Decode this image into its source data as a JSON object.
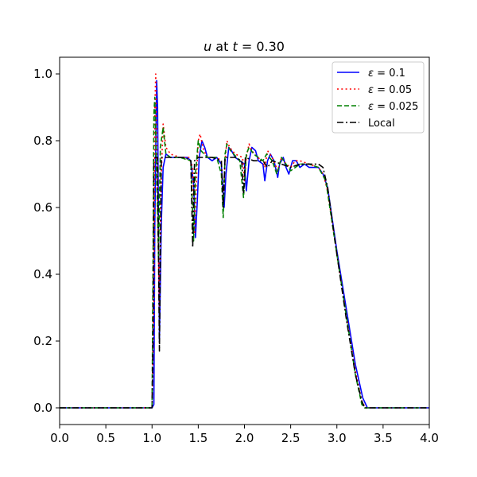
{
  "chart_data": {
    "type": "line",
    "title": "u at t = 0.30",
    "title_parts": {
      "var": "u",
      "mid": " at ",
      "tvar": "t",
      "tail": " = 0.30"
    },
    "xlabel": "",
    "ylabel": "",
    "xlim": [
      0.0,
      4.0
    ],
    "ylim": [
      -0.05,
      1.05
    ],
    "xticks": [
      "0.0",
      "0.5",
      "1.0",
      "1.5",
      "2.0",
      "2.5",
      "3.0",
      "3.5",
      "4.0"
    ],
    "yticks": [
      "0.0",
      "0.2",
      "0.4",
      "0.6",
      "0.8",
      "1.0"
    ],
    "grid": false,
    "legend_position": "top-right",
    "series": [
      {
        "name": "ε = 0.1",
        "legend_parts": {
          "sym": "ε",
          "tail": " = 0.1"
        },
        "color": "#0000ff",
        "dash": "solid",
        "points": [
          [
            0,
            0
          ],
          [
            1.0,
            0
          ],
          [
            1.02,
            0.01
          ],
          [
            1.03,
            0.55
          ],
          [
            1.05,
            0.98
          ],
          [
            1.06,
            0.9
          ],
          [
            1.08,
            0.2
          ],
          [
            1.1,
            0.55
          ],
          [
            1.12,
            0.72
          ],
          [
            1.15,
            0.76
          ],
          [
            1.2,
            0.75
          ],
          [
            1.3,
            0.75
          ],
          [
            1.38,
            0.75
          ],
          [
            1.42,
            0.74
          ],
          [
            1.45,
            0.67
          ],
          [
            1.47,
            0.51
          ],
          [
            1.49,
            0.62
          ],
          [
            1.51,
            0.75
          ],
          [
            1.54,
            0.8
          ],
          [
            1.57,
            0.78
          ],
          [
            1.6,
            0.75
          ],
          [
            1.65,
            0.74
          ],
          [
            1.7,
            0.75
          ],
          [
            1.75,
            0.73
          ],
          [
            1.78,
            0.6
          ],
          [
            1.8,
            0.7
          ],
          [
            1.83,
            0.78
          ],
          [
            1.86,
            0.77
          ],
          [
            1.9,
            0.75
          ],
          [
            1.95,
            0.74
          ],
          [
            2.0,
            0.73
          ],
          [
            2.02,
            0.65
          ],
          [
            2.05,
            0.74
          ],
          [
            2.08,
            0.78
          ],
          [
            2.12,
            0.77
          ],
          [
            2.15,
            0.74
          ],
          [
            2.2,
            0.73
          ],
          [
            2.22,
            0.68
          ],
          [
            2.25,
            0.74
          ],
          [
            2.28,
            0.76
          ],
          [
            2.32,
            0.74
          ],
          [
            2.36,
            0.69
          ],
          [
            2.38,
            0.73
          ],
          [
            2.42,
            0.75
          ],
          [
            2.45,
            0.72
          ],
          [
            2.48,
            0.7
          ],
          [
            2.52,
            0.74
          ],
          [
            2.56,
            0.74
          ],
          [
            2.6,
            0.72
          ],
          [
            2.65,
            0.73
          ],
          [
            2.7,
            0.72
          ],
          [
            2.8,
            0.72
          ],
          [
            2.85,
            0.7
          ],
          [
            2.9,
            0.66
          ],
          [
            3.0,
            0.47
          ],
          [
            3.1,
            0.3
          ],
          [
            3.2,
            0.13
          ],
          [
            3.28,
            0.03
          ],
          [
            3.33,
            0.0
          ],
          [
            4.0,
            0
          ]
        ]
      },
      {
        "name": "ε = 0.05",
        "legend_parts": {
          "sym": "ε",
          "tail": " = 0.05"
        },
        "color": "#ff0000",
        "dash": "dotted",
        "points": [
          [
            0,
            0
          ],
          [
            1.0,
            0
          ],
          [
            1.02,
            0.3
          ],
          [
            1.03,
            0.9
          ],
          [
            1.04,
            1.0
          ],
          [
            1.06,
            0.6
          ],
          [
            1.08,
            0.3
          ],
          [
            1.1,
            0.7
          ],
          [
            1.12,
            0.85
          ],
          [
            1.15,
            0.78
          ],
          [
            1.2,
            0.76
          ],
          [
            1.3,
            0.75
          ],
          [
            1.4,
            0.75
          ],
          [
            1.44,
            0.72
          ],
          [
            1.46,
            0.52
          ],
          [
            1.48,
            0.68
          ],
          [
            1.5,
            0.8
          ],
          [
            1.52,
            0.82
          ],
          [
            1.56,
            0.77
          ],
          [
            1.6,
            0.75
          ],
          [
            1.7,
            0.75
          ],
          [
            1.75,
            0.74
          ],
          [
            1.77,
            0.6
          ],
          [
            1.79,
            0.74
          ],
          [
            1.81,
            0.8
          ],
          [
            1.84,
            0.78
          ],
          [
            1.9,
            0.76
          ],
          [
            1.98,
            0.75
          ],
          [
            2.0,
            0.68
          ],
          [
            2.02,
            0.75
          ],
          [
            2.05,
            0.79
          ],
          [
            2.08,
            0.77
          ],
          [
            2.14,
            0.75
          ],
          [
            2.2,
            0.74
          ],
          [
            2.22,
            0.72
          ],
          [
            2.25,
            0.77
          ],
          [
            2.3,
            0.75
          ],
          [
            2.36,
            0.71
          ],
          [
            2.4,
            0.75
          ],
          [
            2.45,
            0.73
          ],
          [
            2.5,
            0.72
          ],
          [
            2.55,
            0.74
          ],
          [
            2.6,
            0.74
          ],
          [
            2.7,
            0.73
          ],
          [
            2.8,
            0.72
          ],
          [
            2.85,
            0.7
          ],
          [
            2.9,
            0.65
          ],
          [
            3.0,
            0.46
          ],
          [
            3.1,
            0.28
          ],
          [
            3.2,
            0.11
          ],
          [
            3.27,
            0.02
          ],
          [
            3.31,
            0.0
          ],
          [
            4.0,
            0
          ]
        ]
      },
      {
        "name": "ε = 0.025",
        "legend_parts": {
          "sym": "ε",
          "tail": " = 0.025"
        },
        "color": "#008000",
        "dash": "dashed",
        "points": [
          [
            0,
            0
          ],
          [
            1.0,
            0
          ],
          [
            1.01,
            0.4
          ],
          [
            1.02,
            0.88
          ],
          [
            1.03,
            0.93
          ],
          [
            1.05,
            0.7
          ],
          [
            1.07,
            0.45
          ],
          [
            1.09,
            0.78
          ],
          [
            1.12,
            0.84
          ],
          [
            1.15,
            0.76
          ],
          [
            1.2,
            0.75
          ],
          [
            1.3,
            0.75
          ],
          [
            1.42,
            0.74
          ],
          [
            1.45,
            0.5
          ],
          [
            1.47,
            0.7
          ],
          [
            1.5,
            0.8
          ],
          [
            1.53,
            0.77
          ],
          [
            1.6,
            0.75
          ],
          [
            1.7,
            0.75
          ],
          [
            1.75,
            0.7
          ],
          [
            1.77,
            0.57
          ],
          [
            1.79,
            0.76
          ],
          [
            1.81,
            0.79
          ],
          [
            1.85,
            0.77
          ],
          [
            1.95,
            0.74
          ],
          [
            1.99,
            0.63
          ],
          [
            2.02,
            0.76
          ],
          [
            2.05,
            0.78
          ],
          [
            2.1,
            0.76
          ],
          [
            2.2,
            0.74
          ],
          [
            2.24,
            0.76
          ],
          [
            2.3,
            0.74
          ],
          [
            2.35,
            0.7
          ],
          [
            2.4,
            0.75
          ],
          [
            2.45,
            0.73
          ],
          [
            2.5,
            0.71
          ],
          [
            2.6,
            0.73
          ],
          [
            2.7,
            0.73
          ],
          [
            2.8,
            0.72
          ],
          [
            2.88,
            0.68
          ],
          [
            3.0,
            0.46
          ],
          [
            3.1,
            0.28
          ],
          [
            3.2,
            0.1
          ],
          [
            3.27,
            0.01
          ],
          [
            3.3,
            0.0
          ],
          [
            4.0,
            0
          ]
        ]
      },
      {
        "name": "Local",
        "color": "#000000",
        "dash": "dashdot",
        "points": [
          [
            0,
            0
          ],
          [
            1.0,
            0
          ],
          [
            1.01,
            0.2
          ],
          [
            1.02,
            0.75
          ],
          [
            1.04,
            0.75
          ],
          [
            1.06,
            0.75
          ],
          [
            1.08,
            0.17
          ],
          [
            1.1,
            0.75
          ],
          [
            1.2,
            0.75
          ],
          [
            1.35,
            0.75
          ],
          [
            1.42,
            0.74
          ],
          [
            1.44,
            0.48
          ],
          [
            1.46,
            0.74
          ],
          [
            1.5,
            0.75
          ],
          [
            1.65,
            0.75
          ],
          [
            1.75,
            0.74
          ],
          [
            1.77,
            0.6
          ],
          [
            1.79,
            0.75
          ],
          [
            1.9,
            0.75
          ],
          [
            1.97,
            0.74
          ],
          [
            1.99,
            0.64
          ],
          [
            2.01,
            0.75
          ],
          [
            2.1,
            0.74
          ],
          [
            2.2,
            0.74
          ],
          [
            2.25,
            0.72
          ],
          [
            2.3,
            0.74
          ],
          [
            2.4,
            0.73
          ],
          [
            2.5,
            0.72
          ],
          [
            2.6,
            0.73
          ],
          [
            2.7,
            0.73
          ],
          [
            2.8,
            0.73
          ],
          [
            2.85,
            0.72
          ],
          [
            2.9,
            0.66
          ],
          [
            3.0,
            0.46
          ],
          [
            3.1,
            0.27
          ],
          [
            3.2,
            0.1
          ],
          [
            3.27,
            0.02
          ],
          [
            3.3,
            0.0
          ],
          [
            4.0,
            0
          ]
        ]
      }
    ]
  }
}
